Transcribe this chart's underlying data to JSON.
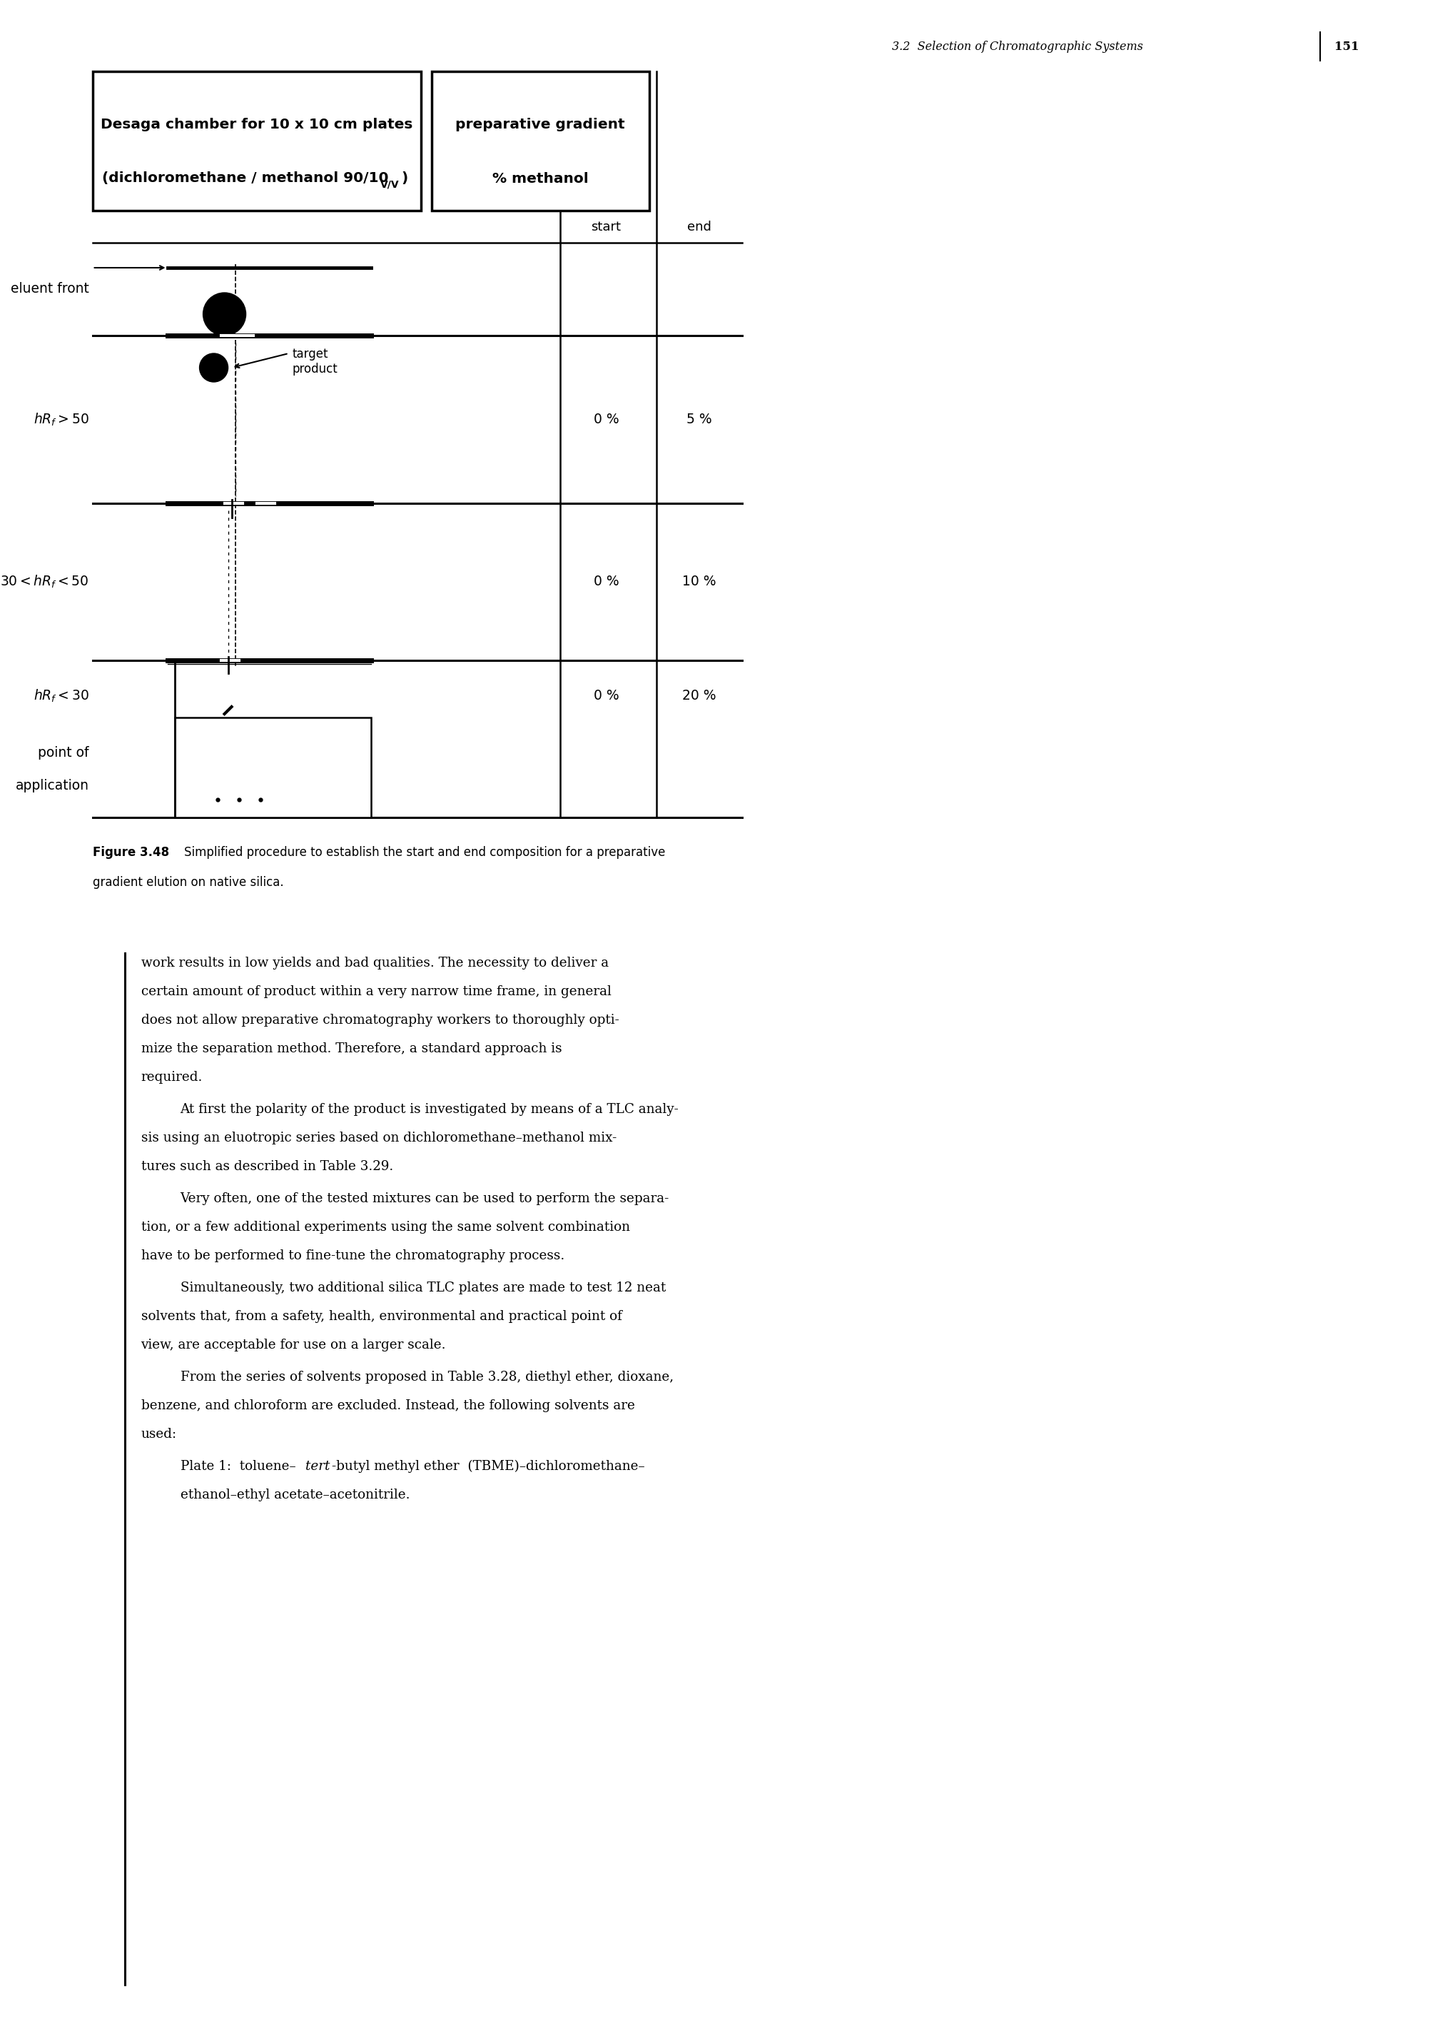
{
  "page_header": "3.2  Selection of Chromatographic Systems",
  "page_number": "151",
  "figure_label": "Figure 3.48",
  "box1_line1": "Desaga chamber for 10 x 10 cm plates",
  "box1_line2": "(dichloromethane / methanol 90/10",
  "box1_subscript": "V/V",
  "box1_line2_end": ")",
  "box2_line1": "preparative gradient",
  "box2_line2": "% methanol",
  "col_start": "start",
  "col_end": "end",
  "row1_label": "eluent front",
  "row2_label": "hR",
  "row2_sub": "f",
  "row2_rest": " > 50",
  "row3_label": "30 < hR",
  "row3_sub": "f",
  "row3_rest": " < 50",
  "row3_start": "0 %",
  "row3_end": "10 %",
  "row4_label": "hR",
  "row4_sub": "f",
  "row4_rest": " < 30",
  "row4_start": "0 %",
  "row4_end": "20 %",
  "row5_label1": "point of",
  "row5_label2": "application",
  "val_0": "0 %",
  "val_5": "5 %",
  "val_10": "10 %",
  "val_20": "20 %",
  "target_product": "target\nproduct",
  "fig_cap1": "Simplified procedure to establish the start and end composition for a preparative",
  "fig_cap2": "gradient elution on native silica.",
  "p1_l1": "work results in low yields and bad qualities. The necessity to deliver a",
  "p1_l2": "certain amount of product within a very narrow time frame, in general",
  "p1_l3": "does not allow preparative chromatography workers to thoroughly opti-",
  "p1_l4": "mize the separation method. Therefore, a standard approach is",
  "p1_l5": "required.",
  "p2_l1": "At first the polarity of the product is investigated by means of a TLC analy-",
  "p2_l2": "sis using an eluotropic series based on dichloromethane–methanol mix-",
  "p2_l3": "tures such as described in Table 3.29.",
  "p3_l1": "Very often, one of the tested mixtures can be used to perform the separa-",
  "p3_l2": "tion, or a few additional experiments using the same solvent combination",
  "p3_l3": "have to be performed to fine-tune the chromatography process.",
  "p4_l1": "Simultaneously, two additional silica TLC plates are made to test 12 neat",
  "p4_l2": "solvents that, from a safety, health, environmental and practical point of",
  "p4_l3": "view, are acceptable for use on a larger scale.",
  "p5_l1": "From the series of solvents proposed in Table 3.28, diethyl ether, dioxane,",
  "p5_l2": "benzene, and chloroform are excluded. Instead, the following solvents are",
  "p5_l3": "used:",
  "p6_l1a": "Plate 1:  toluene–",
  "p6_l1b": "tert",
  "p6_l1c": "-butyl methyl ether  (TBME)–dichloromethane–",
  "p6_l2": "ethanol–ethyl acetate–acetonitrile.",
  "bg_color": "#ffffff"
}
